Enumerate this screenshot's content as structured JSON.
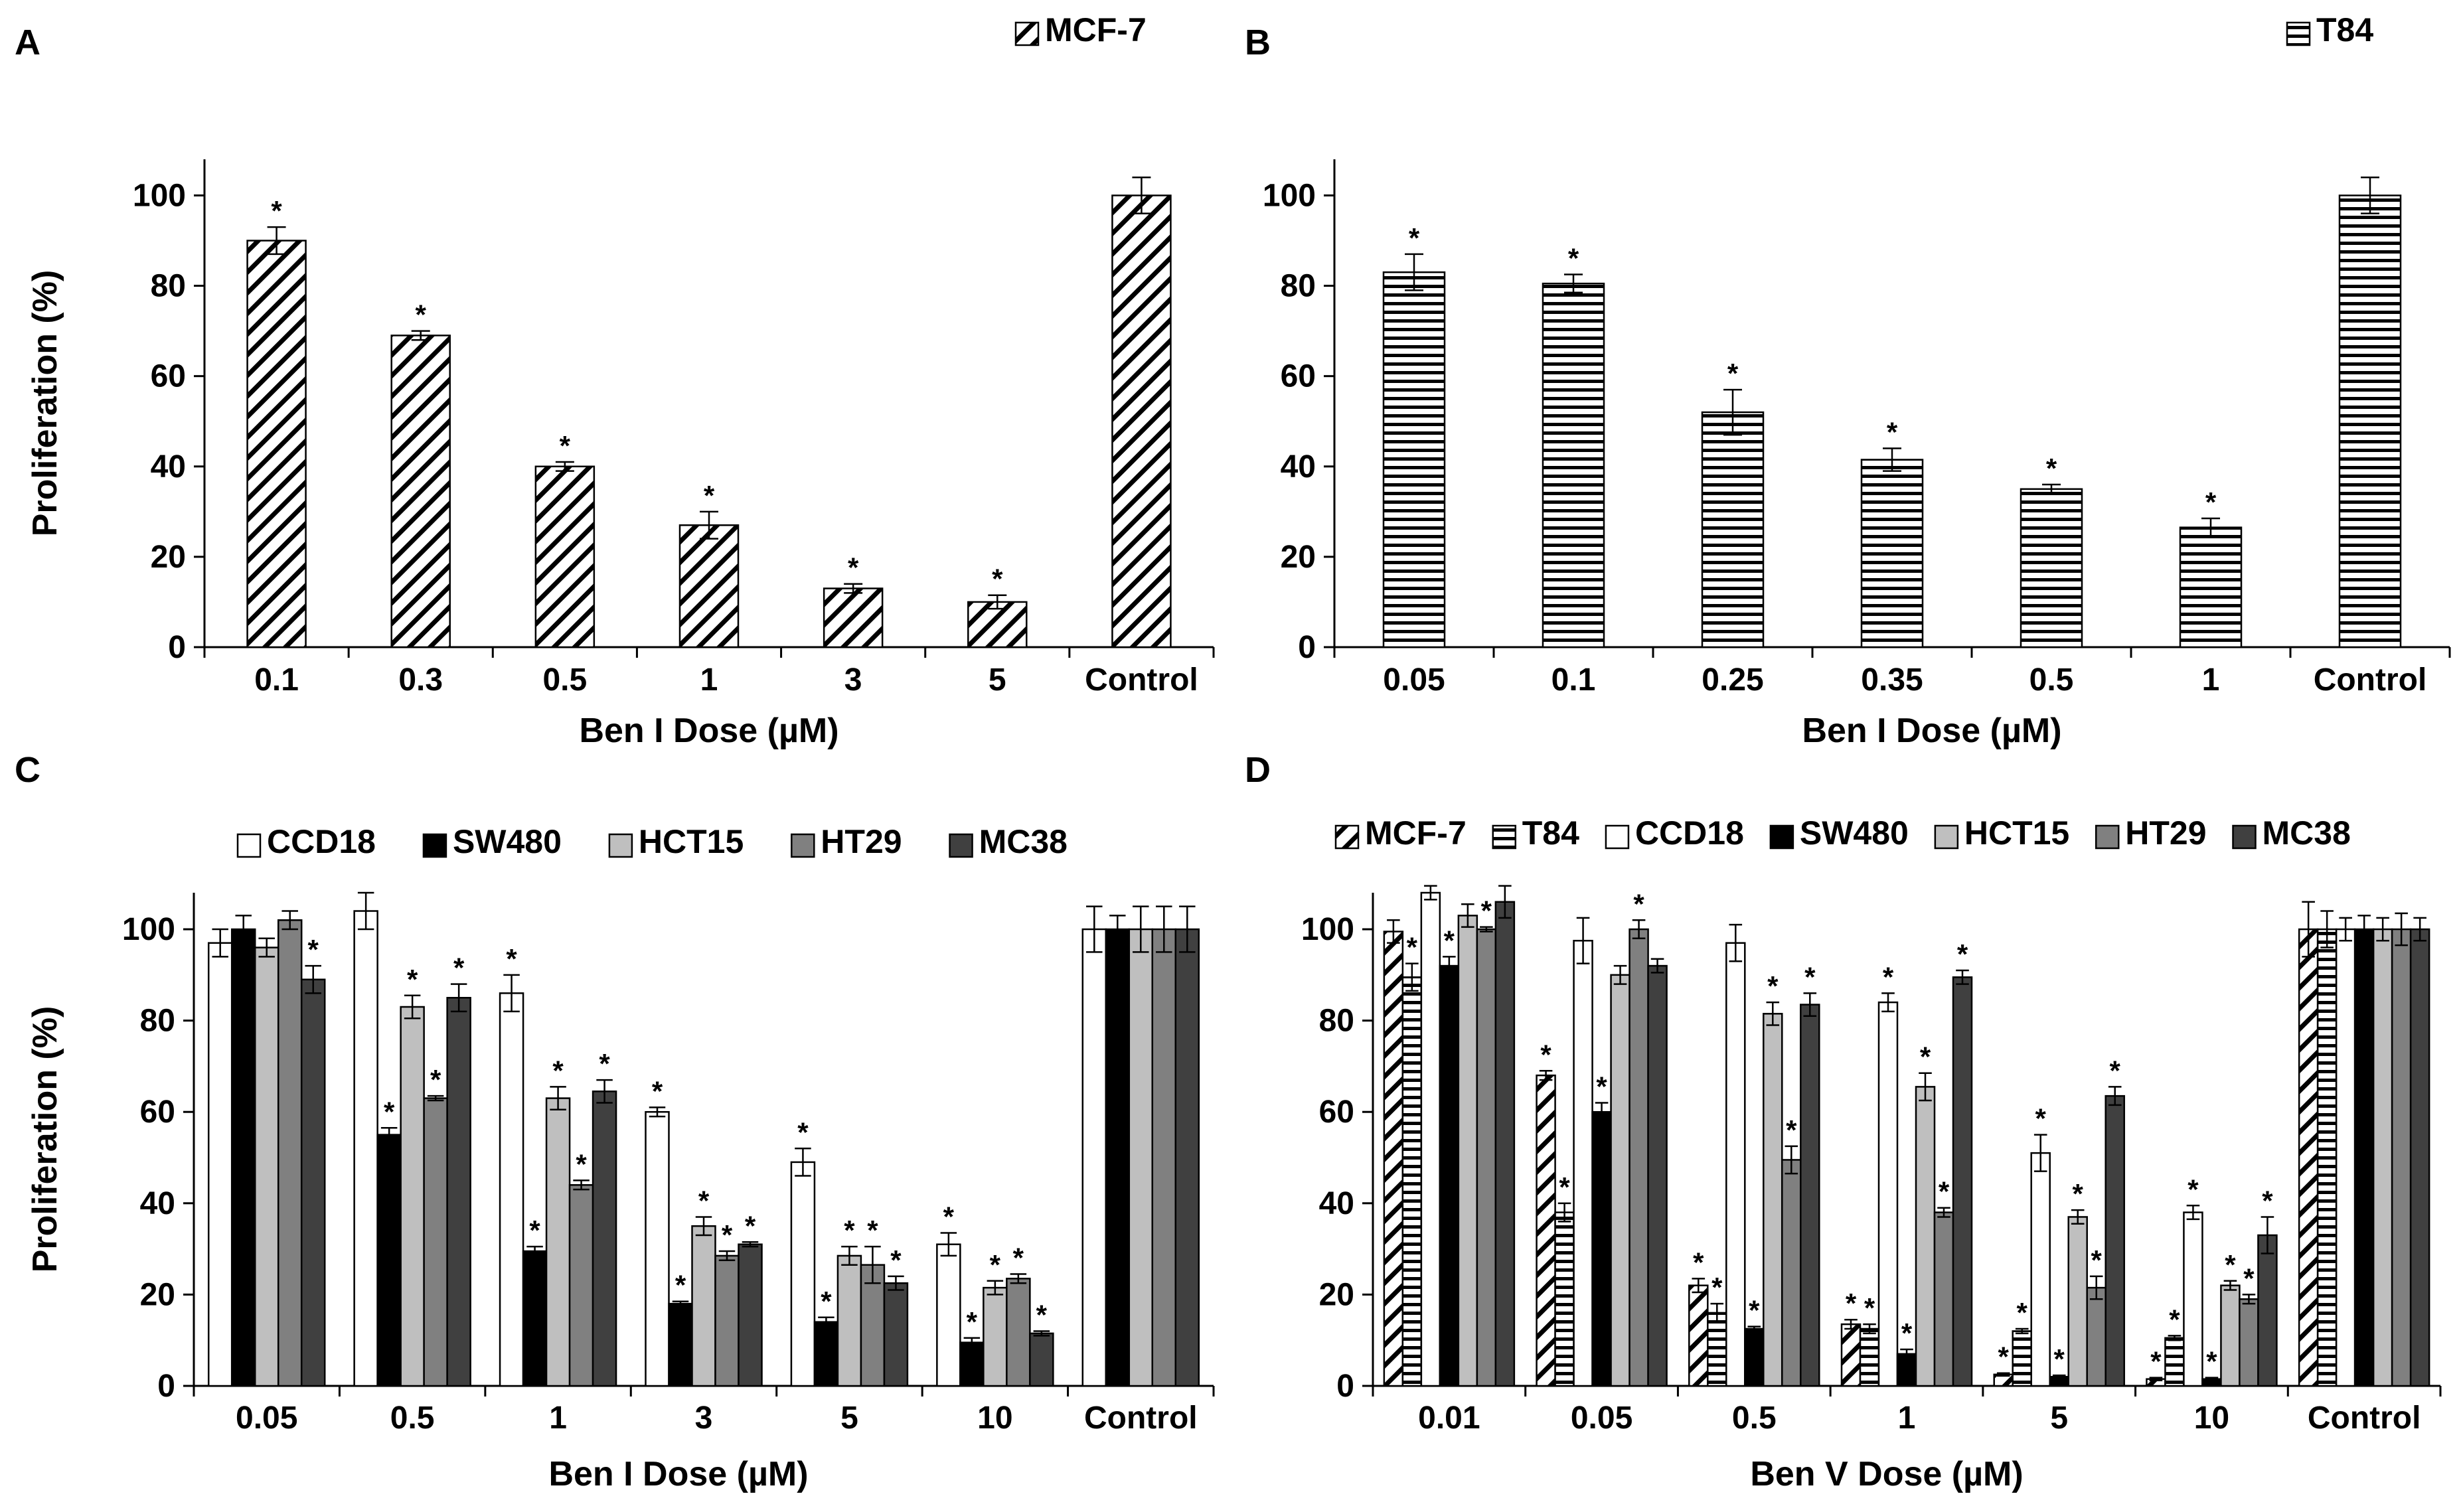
{
  "figure": {
    "panels": [
      {
        "id": "A",
        "letter": "A"
      },
      {
        "id": "B",
        "letter": "B"
      },
      {
        "id": "C",
        "letter": "C"
      },
      {
        "id": "D",
        "letter": "D"
      }
    ]
  },
  "series_styles": {
    "MCF-7": {
      "fill": "hatch-diag",
      "color": "#000000"
    },
    "T84": {
      "fill": "hatch-horiz",
      "color": "#000000"
    },
    "CCD18": {
      "fill": "solid",
      "color": "#ffffff"
    },
    "SW480": {
      "fill": "solid",
      "color": "#000000"
    },
    "HCT15": {
      "fill": "solid",
      "color": "#bfbfbf"
    },
    "HT29": {
      "fill": "solid",
      "color": "#808080"
    },
    "MC38": {
      "fill": "solid",
      "color": "#404040"
    }
  },
  "chart_data": [
    {
      "panel": "A",
      "type": "bar",
      "title": "",
      "xlabel": "Ben I Dose (µM)",
      "ylabel": "Proliferation (%)",
      "ylim": [
        0,
        110
      ],
      "yticks": [
        0,
        20,
        40,
        60,
        80,
        100
      ],
      "grid": false,
      "legend": "top-right",
      "categories": [
        "0.1",
        "0.3",
        "0.5",
        "1",
        "3",
        "5",
        "Control"
      ],
      "series": [
        {
          "name": "MCF-7",
          "values": [
            90,
            69,
            40,
            27,
            13,
            10,
            100
          ],
          "errors": [
            3,
            1,
            1,
            3,
            1,
            1.5,
            4
          ],
          "significant": [
            true,
            true,
            true,
            true,
            true,
            true,
            false
          ]
        }
      ]
    },
    {
      "panel": "B",
      "type": "bar",
      "title": "",
      "xlabel": "Ben I Dose (µM)",
      "ylabel": "",
      "ylim": [
        0,
        110
      ],
      "yticks": [
        0,
        20,
        40,
        60,
        80,
        100
      ],
      "grid": false,
      "legend": "top-right",
      "categories": [
        "0.05",
        "0.1",
        "0.25",
        "0.35",
        "0.5",
        "1",
        "Control"
      ],
      "series": [
        {
          "name": "T84",
          "values": [
            83,
            80.5,
            52,
            41.5,
            35,
            26.5,
            100
          ],
          "errors": [
            4,
            2,
            5,
            2.5,
            1,
            2,
            4
          ],
          "significant": [
            true,
            true,
            true,
            true,
            true,
            true,
            false
          ]
        }
      ]
    },
    {
      "panel": "C",
      "type": "bar",
      "title": "",
      "xlabel": "Ben I Dose (µM)",
      "ylabel": "Proliferation (%)",
      "ylim": [
        0,
        110
      ],
      "yticks": [
        0,
        20,
        40,
        60,
        80,
        100
      ],
      "grid": false,
      "legend": "top",
      "categories": [
        "0.05",
        "0.5",
        "1",
        "3",
        "5",
        "10",
        "Control"
      ],
      "series": [
        {
          "name": "CCD18",
          "values": [
            97,
            104,
            86,
            60,
            49,
            31,
            100
          ],
          "errors": [
            3,
            4,
            4,
            1,
            3,
            2.5,
            5
          ],
          "significant": [
            false,
            false,
            true,
            true,
            true,
            true,
            false
          ]
        },
        {
          "name": "SW480",
          "values": [
            100,
            55,
            29.5,
            18,
            14,
            9.5,
            100
          ],
          "errors": [
            3,
            1.5,
            1,
            0.5,
            1,
            1,
            3
          ],
          "significant": [
            false,
            true,
            true,
            true,
            true,
            true,
            false
          ]
        },
        {
          "name": "HCT15",
          "values": [
            96,
            83,
            63,
            35,
            28.5,
            21.5,
            100
          ],
          "errors": [
            2,
            2.5,
            2.5,
            2,
            2,
            1.5,
            5
          ],
          "significant": [
            false,
            true,
            true,
            true,
            true,
            true,
            false
          ]
        },
        {
          "name": "HT29",
          "values": [
            102,
            63,
            44,
            28.5,
            26.5,
            23.5,
            100
          ],
          "errors": [
            2,
            0.5,
            1,
            1,
            4,
            1,
            5
          ],
          "significant": [
            false,
            true,
            true,
            true,
            true,
            true,
            false
          ]
        },
        {
          "name": "MC38",
          "values": [
            89,
            85,
            64.5,
            31,
            22.5,
            11.5,
            100
          ],
          "errors": [
            3,
            3,
            2.5,
            0.5,
            1.5,
            0.5,
            5
          ],
          "significant": [
            true,
            true,
            true,
            true,
            true,
            true,
            false
          ]
        }
      ]
    },
    {
      "panel": "D",
      "type": "bar",
      "title": "",
      "xlabel": "Ben V Dose (µM)",
      "ylabel": "",
      "ylim": [
        0,
        110
      ],
      "yticks": [
        0,
        20,
        40,
        60,
        80,
        100
      ],
      "grid": false,
      "legend": "top",
      "categories": [
        "0.01",
        "0.05",
        "0.5",
        "1",
        "5",
        "10",
        "Control"
      ],
      "series": [
        {
          "name": "MCF-7",
          "values": [
            99.5,
            68,
            22,
            13.5,
            2.5,
            1.5,
            100
          ],
          "errors": [
            2.5,
            1,
            1.5,
            1,
            0.3,
            0.3,
            6
          ],
          "significant": [
            false,
            true,
            true,
            true,
            true,
            true,
            false
          ]
        },
        {
          "name": "T84",
          "values": [
            89.5,
            38,
            16,
            12.5,
            12,
            10.5,
            100
          ],
          "errors": [
            3,
            2,
            2,
            1,
            0.5,
            0.5,
            4
          ],
          "significant": [
            true,
            true,
            true,
            true,
            true,
            true,
            false
          ]
        },
        {
          "name": "CCD18",
          "values": [
            108,
            97.5,
            97,
            84,
            51,
            38,
            100
          ],
          "errors": [
            1.5,
            5,
            4,
            2,
            4,
            1.5,
            2.5
          ],
          "significant": [
            false,
            false,
            false,
            true,
            true,
            true,
            false
          ]
        },
        {
          "name": "SW480",
          "values": [
            92,
            60,
            12.5,
            7,
            2,
            1.5,
            100
          ],
          "errors": [
            2,
            2,
            0.5,
            1,
            0.3,
            0.3,
            3
          ],
          "significant": [
            true,
            true,
            true,
            true,
            true,
            true,
            false
          ]
        },
        {
          "name": "HCT15",
          "values": [
            103,
            90,
            81.5,
            65.5,
            37,
            22,
            100
          ],
          "errors": [
            2.5,
            2,
            2.5,
            3,
            1.5,
            1,
            2.5
          ],
          "significant": [
            false,
            false,
            true,
            true,
            true,
            true,
            false
          ]
        },
        {
          "name": "HT29",
          "values": [
            100,
            100,
            49.5,
            38,
            21.5,
            19,
            100
          ],
          "errors": [
            0.5,
            2,
            3,
            1,
            2.5,
            1,
            3.5
          ],
          "significant": [
            true,
            true,
            true,
            true,
            true,
            true,
            false
          ]
        },
        {
          "name": "MC38",
          "values": [
            106,
            92,
            83.5,
            89.5,
            63.5,
            33,
            100
          ],
          "errors": [
            3.5,
            1.5,
            2.5,
            1.5,
            2,
            4,
            2.5
          ],
          "significant": [
            false,
            false,
            true,
            true,
            true,
            true,
            false
          ]
        }
      ]
    }
  ]
}
